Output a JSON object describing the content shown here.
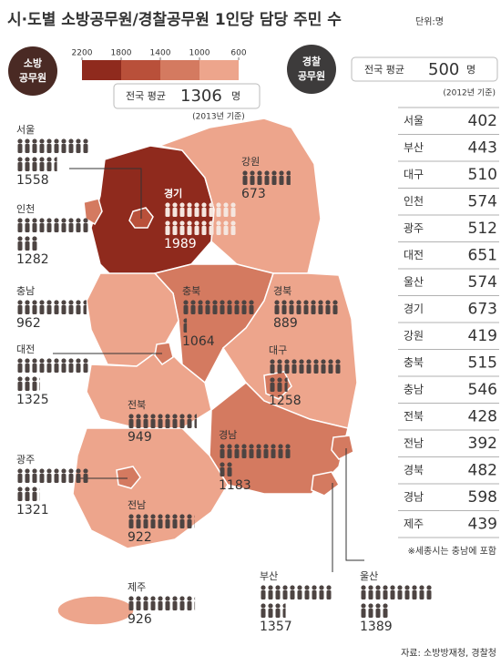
{
  "title": "시·도별 소방공무원/경찰공무원 1인당 담당 주민 수",
  "unit": "단위:명",
  "fire": {
    "badge": [
      "소방",
      "공무원"
    ],
    "scale": [
      2200,
      1800,
      1400,
      1000,
      600
    ],
    "colors": [
      "#8f2a1d",
      "#b9503a",
      "#d47a60",
      "#eda58c"
    ],
    "avg_label": "전국 평균",
    "avg": 1306,
    "avg_unit": "명",
    "year_note": "(2013년 기준)",
    "regions": [
      {
        "name": "서울",
        "value": 1558
      },
      {
        "name": "인천",
        "value": 1282
      },
      {
        "name": "충남",
        "value": 962
      },
      {
        "name": "대전",
        "value": 1325
      },
      {
        "name": "광주",
        "value": 1321
      },
      {
        "name": "제주",
        "value": 926
      },
      {
        "name": "경기",
        "value": 1989
      },
      {
        "name": "강원",
        "value": 673
      },
      {
        "name": "충북",
        "value": 1064
      },
      {
        "name": "경북",
        "value": 889
      },
      {
        "name": "대구",
        "value": 1258
      },
      {
        "name": "전북",
        "value": 949
      },
      {
        "name": "경남",
        "value": 1183
      },
      {
        "name": "전남",
        "value": 922
      },
      {
        "name": "부산",
        "value": 1357
      },
      {
        "name": "울산",
        "value": 1389
      }
    ]
  },
  "police": {
    "badge": [
      "경찰",
      "공무원"
    ],
    "avg_label": "전국 평균",
    "avg": 500,
    "avg_unit": "명",
    "year_note": "(2012년 기준)",
    "rows": [
      {
        "name": "서울",
        "value": 402
      },
      {
        "name": "부산",
        "value": 443
      },
      {
        "name": "대구",
        "value": 510
      },
      {
        "name": "인천",
        "value": 574
      },
      {
        "name": "광주",
        "value": 512
      },
      {
        "name": "대전",
        "value": 651
      },
      {
        "name": "울산",
        "value": 574
      },
      {
        "name": "경기",
        "value": 673
      },
      {
        "name": "강원",
        "value": 419
      },
      {
        "name": "충북",
        "value": 515
      },
      {
        "name": "충남",
        "value": 546
      },
      {
        "name": "전북",
        "value": 428
      },
      {
        "name": "전남",
        "value": 392
      },
      {
        "name": "경북",
        "value": 482
      },
      {
        "name": "경남",
        "value": 598
      },
      {
        "name": "제주",
        "value": 439
      }
    ]
  },
  "note": "※세종시는 충남에 포함",
  "source": "자료: 소방방재청, 경찰청"
}
